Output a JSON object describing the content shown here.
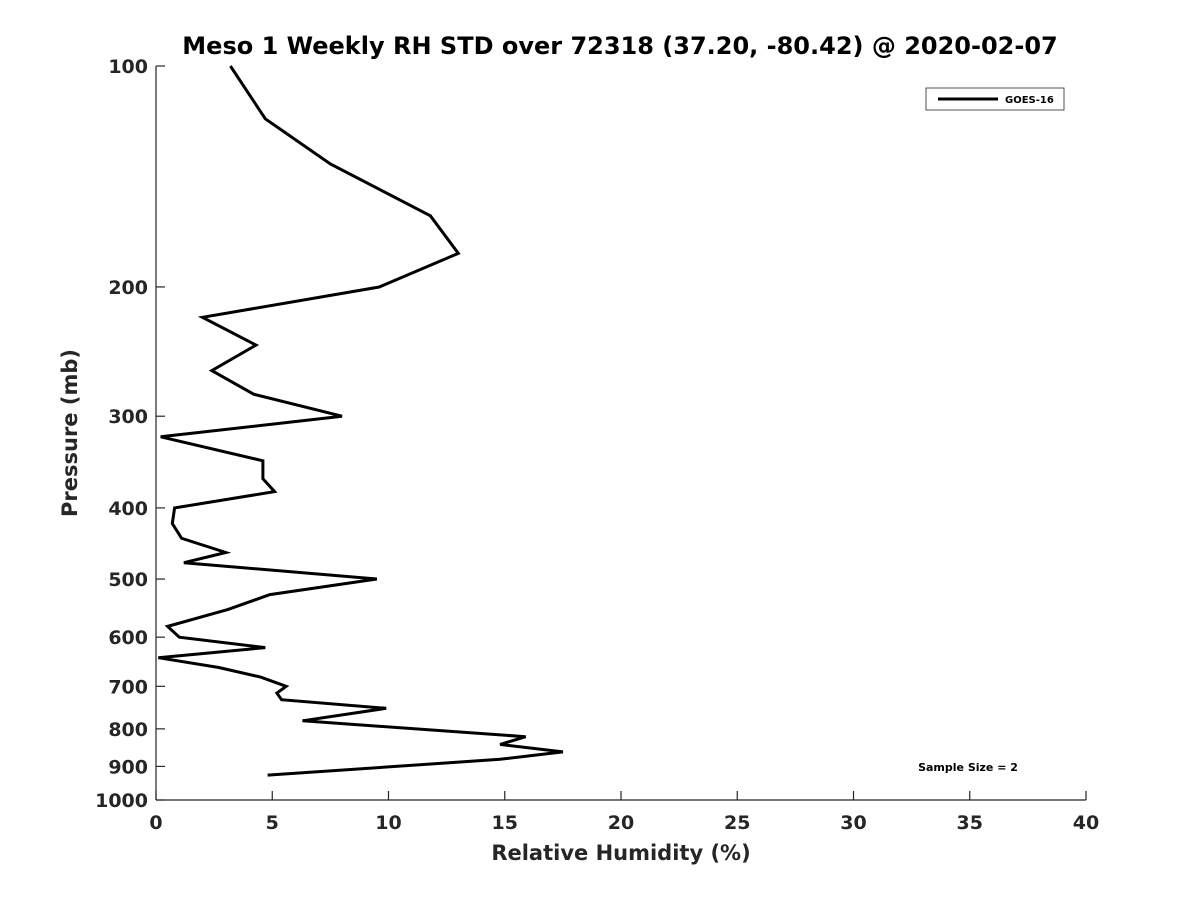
{
  "chart_data": {
    "type": "line",
    "title": "Meso 1 Weekly RH STD over 72318 (37.20, -80.42) @ 2020-02-07",
    "xlabel": "Relative Humidity (%)",
    "ylabel": "Pressure (mb)",
    "xlim": [
      0,
      40
    ],
    "ylim": [
      100,
      1000
    ],
    "yscale": "log",
    "reverse_y": true,
    "grid": false,
    "xticks": [
      0,
      5,
      10,
      15,
      20,
      25,
      30,
      35,
      40
    ],
    "xtick_labels": [
      "0",
      "5",
      "10",
      "15",
      "20",
      "25",
      "30",
      "35",
      "40"
    ],
    "yticks": [
      100,
      200,
      300,
      400,
      500,
      600,
      700,
      800,
      900,
      1000
    ],
    "ytick_labels": [
      "100",
      "200",
      "300",
      "400",
      "500",
      "600",
      "700",
      "800",
      "900",
      "1000"
    ],
    "legend": {
      "position": "top-right",
      "entries": [
        "GOES-16"
      ]
    },
    "annotation": "Sample Size = 2",
    "series": [
      {
        "name": "GOES-16",
        "color": "#000000",
        "points": [
          {
            "x": 3.2,
            "p": 100
          },
          {
            "x": 4.7,
            "p": 118
          },
          {
            "x": 7.5,
            "p": 136
          },
          {
            "x": 11.8,
            "p": 160
          },
          {
            "x": 13.0,
            "p": 180
          },
          {
            "x": 9.6,
            "p": 200
          },
          {
            "x": 2.0,
            "p": 220
          },
          {
            "x": 4.3,
            "p": 240
          },
          {
            "x": 2.4,
            "p": 260
          },
          {
            "x": 4.2,
            "p": 280
          },
          {
            "x": 8.0,
            "p": 300
          },
          {
            "x": 0.2,
            "p": 320
          },
          {
            "x": 4.6,
            "p": 345
          },
          {
            "x": 4.6,
            "p": 365
          },
          {
            "x": 5.1,
            "p": 380
          },
          {
            "x": 0.8,
            "p": 400
          },
          {
            "x": 0.7,
            "p": 420
          },
          {
            "x": 1.1,
            "p": 440
          },
          {
            "x": 3.0,
            "p": 460
          },
          {
            "x": 1.2,
            "p": 475
          },
          {
            "x": 9.5,
            "p": 500
          },
          {
            "x": 4.9,
            "p": 525
          },
          {
            "x": 3.1,
            "p": 550
          },
          {
            "x": 0.5,
            "p": 580
          },
          {
            "x": 1.0,
            "p": 600
          },
          {
            "x": 4.7,
            "p": 620
          },
          {
            "x": 0.1,
            "p": 640
          },
          {
            "x": 2.7,
            "p": 660
          },
          {
            "x": 4.5,
            "p": 680
          },
          {
            "x": 5.6,
            "p": 700
          },
          {
            "x": 5.2,
            "p": 715
          },
          {
            "x": 5.4,
            "p": 730
          },
          {
            "x": 9.9,
            "p": 750
          },
          {
            "x": 6.3,
            "p": 780
          },
          {
            "x": 15.9,
            "p": 820
          },
          {
            "x": 14.8,
            "p": 840
          },
          {
            "x": 17.5,
            "p": 860
          },
          {
            "x": 14.8,
            "p": 880
          },
          {
            "x": 4.8,
            "p": 925
          }
        ]
      }
    ]
  }
}
